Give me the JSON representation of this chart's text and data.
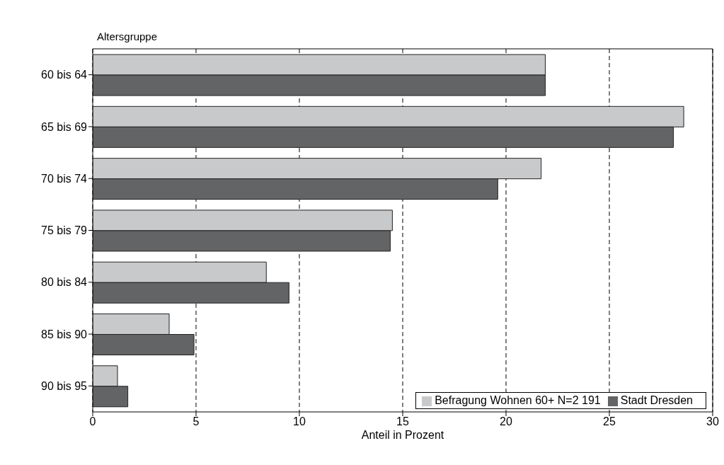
{
  "chart_data": {
    "type": "bar",
    "orientation": "horizontal",
    "ylabel": "Altersgruppe",
    "xlabel": "Anteil in Prozent",
    "categories": [
      "60 bis 64",
      "65 bis 69",
      "70 bis 74",
      "75 bis 79",
      "80 bis 84",
      "85 bis 90",
      "90 bis 95"
    ],
    "series": [
      {
        "name": "Befragung Wohnen 60+  N=2 191",
        "color": "#c8c9cb",
        "values": [
          21.9,
          28.6,
          21.7,
          14.5,
          8.4,
          3.7,
          1.2
        ]
      },
      {
        "name": "Stadt Dresden",
        "color": "#636466",
        "values": [
          21.9,
          28.1,
          19.6,
          14.4,
          9.5,
          4.9,
          1.7
        ]
      }
    ],
    "xlim": [
      0,
      30
    ],
    "xticks": [
      0,
      5,
      10,
      15,
      20,
      25,
      30
    ],
    "grid": "x",
    "legend": "bottom right"
  }
}
